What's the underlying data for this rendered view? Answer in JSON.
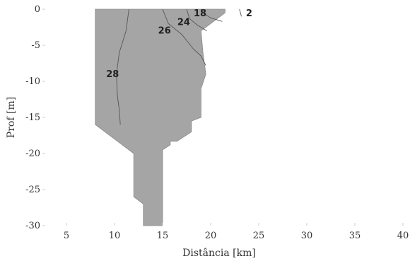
{
  "chart_data": {
    "type": "contour",
    "xlabel": "Distância [km]",
    "ylabel": "Prof [m]",
    "xlim": [
      2.5,
      40
    ],
    "ylim": [
      -30,
      0
    ],
    "xticks": [
      5,
      10,
      15,
      20,
      25,
      30,
      35,
      40
    ],
    "yticks": [
      0,
      -5,
      -10,
      -15,
      -20,
      -25,
      -30
    ],
    "grid": false,
    "colors": {
      "field": "#a5a5a5",
      "line": "#555555",
      "text": "#222222",
      "outline": "#cccccc"
    },
    "filled_region": [
      [
        8,
        0
      ],
      [
        21.5,
        0
      ],
      [
        21.5,
        -0.5
      ],
      [
        20.5,
        -1.5
      ],
      [
        19,
        -3
      ],
      [
        19.2,
        -6
      ],
      [
        19.5,
        -9
      ],
      [
        19,
        -11
      ],
      [
        19,
        -15
      ],
      [
        18,
        -15.5
      ],
      [
        18,
        -17
      ],
      [
        16.5,
        -18.3
      ],
      [
        15.8,
        -18.3
      ],
      [
        15.8,
        -18.8
      ],
      [
        15,
        -19.5
      ],
      [
        15,
        -30
      ],
      [
        13,
        -30
      ],
      [
        13,
        -27
      ],
      [
        12,
        -26
      ],
      [
        12,
        -20
      ],
      [
        11,
        -19
      ],
      [
        8,
        -16
      ],
      [
        8,
        0
      ]
    ],
    "contours": [
      {
        "level": 28,
        "points": [
          [
            11.5,
            0
          ],
          [
            11.2,
            -3
          ],
          [
            10.5,
            -6
          ],
          [
            10.2,
            -9
          ],
          [
            10.3,
            -12
          ],
          [
            10.5,
            -14
          ],
          [
            10.6,
            -16
          ]
        ]
      },
      {
        "level": 26,
        "points": [
          [
            15,
            0
          ],
          [
            15.6,
            -2
          ],
          [
            17,
            -3.5
          ],
          [
            18.2,
            -5.5
          ],
          [
            19,
            -6.5
          ],
          [
            19.5,
            -7.8
          ]
        ]
      },
      {
        "level": 24,
        "points": [
          [
            17.5,
            0
          ],
          [
            17.8,
            -1.3
          ],
          [
            18.6,
            -2.2
          ],
          [
            19.6,
            -3
          ]
        ]
      },
      {
        "level": 18,
        "points": [
          [
            19,
            0
          ],
          [
            19.2,
            -0.5
          ],
          [
            20,
            -1.2
          ],
          [
            21.2,
            -1.7
          ]
        ]
      },
      {
        "level": 2,
        "points": [
          [
            23,
            0
          ],
          [
            23.2,
            -1
          ]
        ]
      }
    ],
    "labels": [
      {
        "text": "18",
        "x": 18.9,
        "y": -0.5
      },
      {
        "text": "24",
        "x": 17.2,
        "y": -1.7
      },
      {
        "text": "26",
        "x": 15.2,
        "y": -2.9
      },
      {
        "text": "28",
        "x": 9.8,
        "y": -8.9
      },
      {
        "text": "2",
        "x": 24,
        "y": -0.5
      }
    ]
  }
}
